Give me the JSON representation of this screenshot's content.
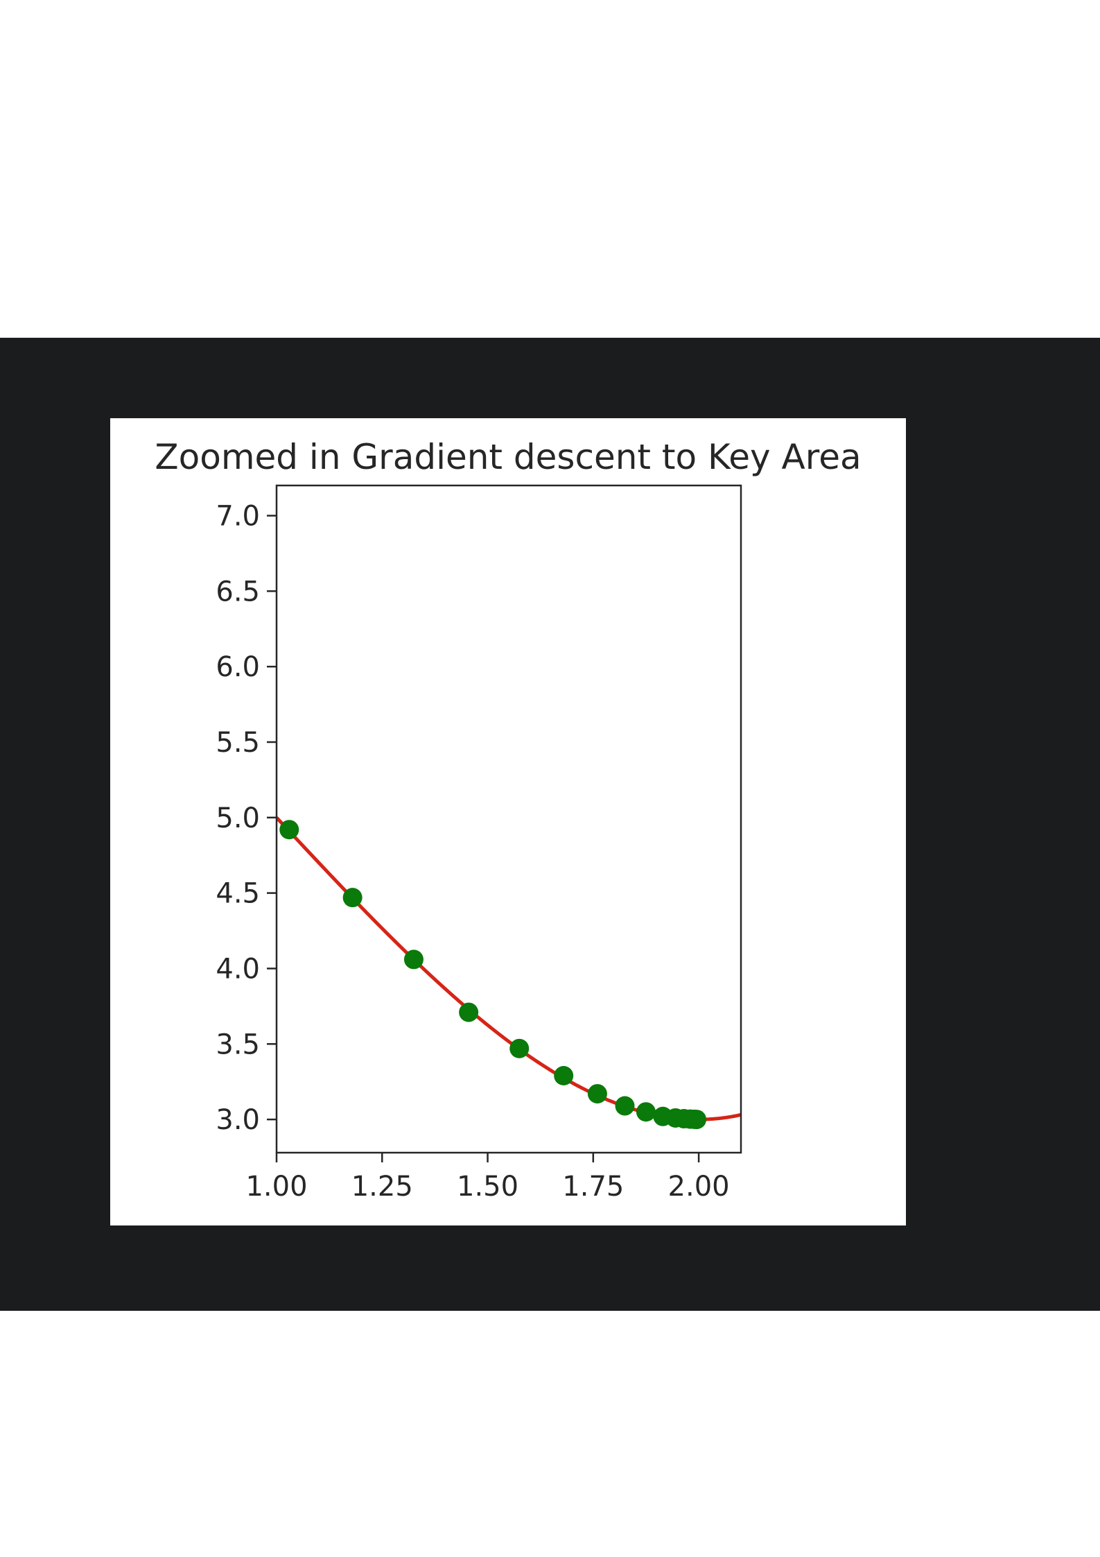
{
  "colors": {
    "background_band": "#1b1c1e",
    "figure_background": "#ffffff",
    "curve": "#d62417",
    "points": "#0a7a0a",
    "axes": "#262626"
  },
  "chart_data": {
    "type": "scatter",
    "title": "Zoomed in Gradient descent to Key Area",
    "xlabel": "",
    "ylabel": "",
    "xlim": [
      1.0,
      2.1
    ],
    "ylim": [
      2.78,
      7.2
    ],
    "grid": false,
    "xticks": [
      1.0,
      1.25,
      1.5,
      1.75,
      2.0
    ],
    "xtick_labels": [
      "1.00",
      "1.25",
      "1.50",
      "1.75",
      "2.00"
    ],
    "yticks": [
      3.0,
      3.5,
      4.0,
      4.5,
      5.0,
      5.5,
      6.0,
      6.5,
      7.0
    ],
    "ytick_labels": [
      "3.0",
      "3.5",
      "4.0",
      "4.5",
      "5.0",
      "5.5",
      "6.0",
      "6.5",
      "7.0"
    ],
    "series": [
      {
        "kind": "line",
        "color": "#d62417",
        "function": "y = (x - 2)^2 * (x + 1) + 3",
        "x_range": [
          1.0,
          2.1
        ]
      },
      {
        "kind": "scatter",
        "color": "#0a7a0a",
        "points": [
          [
            1.03,
            4.92
          ],
          [
            1.18,
            4.47
          ],
          [
            1.325,
            4.06
          ],
          [
            1.455,
            3.71
          ],
          [
            1.575,
            3.47
          ],
          [
            1.68,
            3.29
          ],
          [
            1.76,
            3.17
          ],
          [
            1.825,
            3.09
          ],
          [
            1.875,
            3.05
          ],
          [
            1.915,
            3.02
          ],
          [
            1.945,
            3.01
          ],
          [
            1.965,
            3.005
          ],
          [
            1.98,
            3.002
          ],
          [
            1.99,
            3.001
          ],
          [
            1.995,
            3.0
          ]
        ]
      }
    ]
  }
}
